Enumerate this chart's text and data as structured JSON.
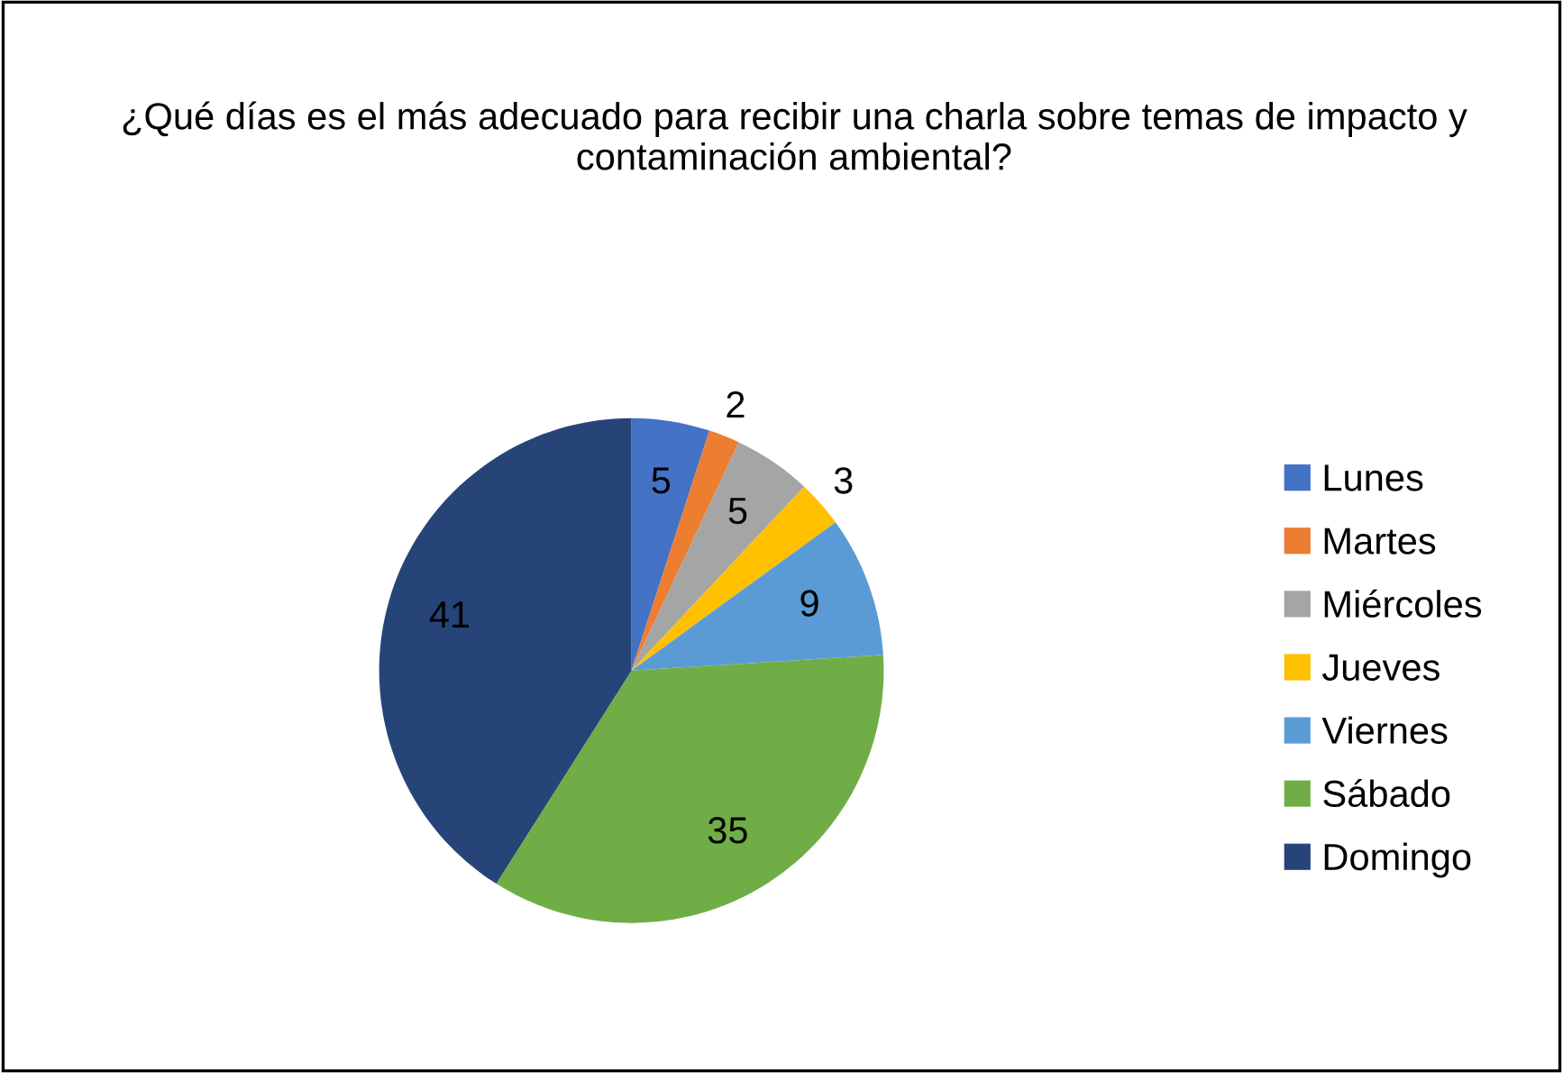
{
  "chart_data": {
    "type": "pie",
    "title": "¿Qué días es el más adecuado para recibir una charla sobre temas de impacto y contaminación ambiental?",
    "categories": [
      "Lunes",
      "Martes",
      "Miércoles",
      "Jueves",
      "Viernes",
      "Sábado",
      "Domingo"
    ],
    "values": [
      5,
      2,
      5,
      3,
      9,
      35,
      41
    ],
    "colors": [
      "#4472c4",
      "#ed7d31",
      "#a5a5a5",
      "#ffc000",
      "#5b9bd5",
      "#70ad47",
      "#264478"
    ],
    "data_labels": true,
    "legend": "right"
  }
}
